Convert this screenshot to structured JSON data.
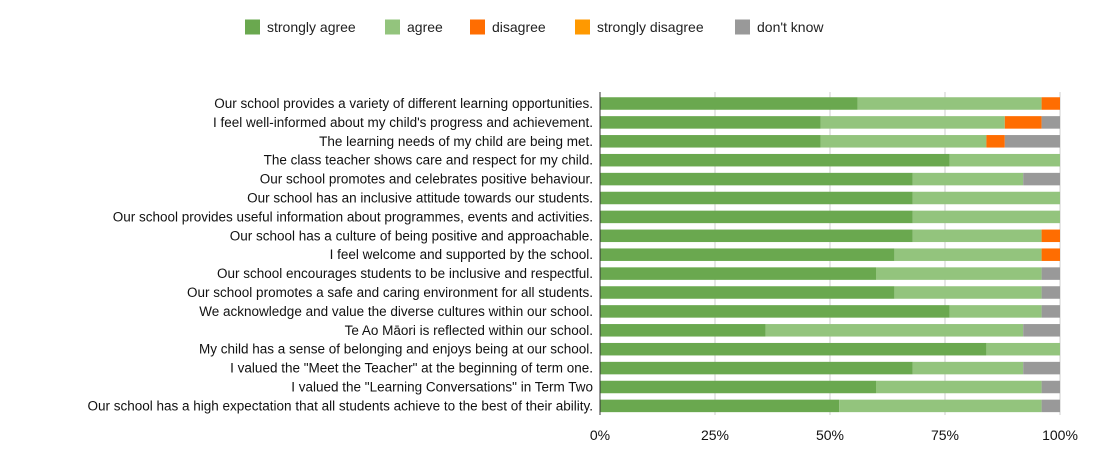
{
  "chart_data": {
    "type": "bar",
    "orientation": "horizontal",
    "stacked": "percent",
    "categories": [
      "Our school provides a variety of different learning opportunities.",
      "I feel well-informed about my child's progress and achievement.",
      "The learning needs of my child are being met.",
      "The class teacher shows care and respect for my child.",
      "Our school promotes and celebrates positive behaviour.",
      "Our school has an inclusive attitude towards our students.",
      "Our school provides useful information about programmes, events and activities.",
      "Our school has a culture of being positive and approachable.",
      "I feel welcome and supported by the school.",
      "Our school encourages students to be inclusive and respectful.",
      "Our school promotes a safe and caring environment for all students.",
      "We acknowledge and value the diverse cultures within our school.",
      "Te Ao Māori is reflected within our school.",
      "My child has a sense of belonging and enjoys being at our school.",
      "I valued the \"Meet the Teacher\" at the beginning of term one.",
      "I valued the \"Learning Conversations\" in Term Two",
      "Our school has a high expectation that all students achieve to the best of their ability."
    ],
    "series": [
      {
        "name": "strongly agree",
        "color": "#6aa84f",
        "values": [
          56,
          48,
          48,
          76,
          68,
          68,
          68,
          68,
          64,
          60,
          64,
          76,
          36,
          84,
          68,
          60,
          52
        ]
      },
      {
        "name": "agree",
        "color": "#93c47d",
        "values": [
          40,
          40,
          36,
          24,
          24,
          32,
          32,
          28,
          32,
          36,
          32,
          20,
          56,
          16,
          24,
          36,
          44
        ]
      },
      {
        "name": "disagree",
        "color": "#ff6d01",
        "values": [
          4,
          8,
          4,
          0,
          0,
          0,
          0,
          4,
          4,
          0,
          0,
          0,
          0,
          0,
          0,
          0,
          0
        ]
      },
      {
        "name": "strongly disagree",
        "color": "#ff9900",
        "values": [
          0,
          0,
          0,
          0,
          0,
          0,
          0,
          0,
          0,
          0,
          0,
          0,
          0,
          0,
          0,
          0,
          0
        ]
      },
      {
        "name": "don't know",
        "color": "#999999",
        "values": [
          0,
          4,
          12,
          0,
          8,
          0,
          0,
          0,
          0,
          4,
          4,
          4,
          8,
          0,
          8,
          4,
          4
        ]
      }
    ],
    "xlim": [
      0,
      100
    ],
    "xticks": [
      "0%",
      "25%",
      "50%",
      "75%",
      "100%"
    ],
    "grid": true,
    "legend_position": "top"
  }
}
